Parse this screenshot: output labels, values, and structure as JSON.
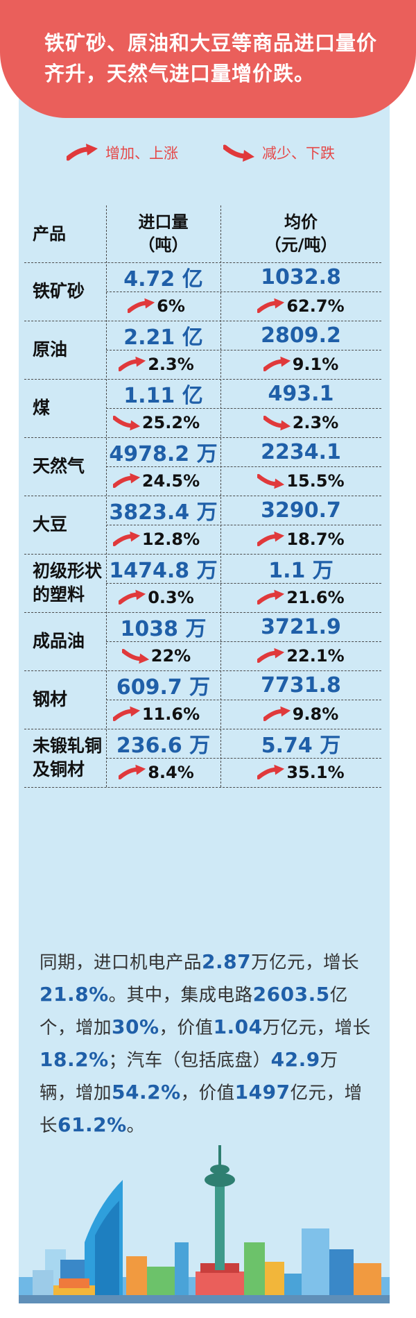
{
  "banner": {
    "title": "铁矿砂、原油和大豆等商品进口量价齐升，天然气进口量增价跌。"
  },
  "legend": {
    "up_label": "增加、上涨",
    "down_label": "减少、下跌"
  },
  "table": {
    "headers": {
      "product": "产品",
      "volume_line1": "进口量",
      "volume_line2": "（吨）",
      "price_line1": "均价",
      "price_line2": "（元/吨）"
    },
    "rows": [
      {
        "name": "铁矿砂",
        "volume": "4.72 亿",
        "volume_change": "6%",
        "volume_dir": "up",
        "price": "1032.8",
        "price_change": "62.7%",
        "price_dir": "up"
      },
      {
        "name": "原油",
        "volume": "2.21 亿",
        "volume_change": "2.3%",
        "volume_dir": "up",
        "price": "2809.2",
        "price_change": "9.1%",
        "price_dir": "up"
      },
      {
        "name": "煤",
        "volume": "1.11 亿",
        "volume_change": "25.2%",
        "volume_dir": "down",
        "price": "493.1",
        "price_change": "2.3%",
        "price_dir": "down"
      },
      {
        "name": "天然气",
        "volume": "4978.2 万",
        "volume_change": "24.5%",
        "volume_dir": "up",
        "price": "2234.1",
        "price_change": "15.5%",
        "price_dir": "down"
      },
      {
        "name": "大豆",
        "volume": "3823.4 万",
        "volume_change": "12.8%",
        "volume_dir": "up",
        "price": "3290.7",
        "price_change": "18.7%",
        "price_dir": "up"
      },
      {
        "name": "初级形状的塑料",
        "name_line1": "初级形状",
        "name_line2": "的塑料",
        "volume": "1474.8 万",
        "volume_change": "0.3%",
        "volume_dir": "up",
        "price": "1.1 万",
        "price_change": "21.6%",
        "price_dir": "up"
      },
      {
        "name": "成品油",
        "volume": "1038 万",
        "volume_change": "22%",
        "volume_dir": "down",
        "price": "3721.9",
        "price_change": "22.1%",
        "price_dir": "up"
      },
      {
        "name": "钢材",
        "volume": "609.7 万",
        "volume_change": "11.6%",
        "volume_dir": "up",
        "price": "7731.8",
        "price_change": "9.8%",
        "price_dir": "up"
      },
      {
        "name": "未锻轧铜及铜材",
        "name_line1": "未锻轧铜",
        "name_line2": "及铜材",
        "volume": "236.6 万",
        "volume_change": "8.4%",
        "volume_dir": "up",
        "price": "5.74 万",
        "price_change": "35.1%",
        "price_dir": "up"
      }
    ]
  },
  "summary": {
    "segments": [
      {
        "text": "同期，进口机电产品",
        "bold": false
      },
      {
        "text": "2.87",
        "bold": true
      },
      {
        "text": "万亿元，增长",
        "bold": false
      },
      {
        "text": "21.8%",
        "bold": true
      },
      {
        "text": "。其中，集成电路",
        "bold": false
      },
      {
        "text": "2603.5",
        "bold": true
      },
      {
        "text": "亿个，增加",
        "bold": false
      },
      {
        "text": "30%",
        "bold": true
      },
      {
        "text": "，价值",
        "bold": false
      },
      {
        "text": "1.04",
        "bold": true
      },
      {
        "text": "万亿元，增长",
        "bold": false
      },
      {
        "text": "18.2%",
        "bold": true
      },
      {
        "text": "；汽车（包括底盘）",
        "bold": false
      },
      {
        "text": "42.9",
        "bold": true
      },
      {
        "text": "万辆，增加",
        "bold": false
      },
      {
        "text": "54.2%",
        "bold": true
      },
      {
        "text": "，价值",
        "bold": false
      },
      {
        "text": "1497",
        "bold": true
      },
      {
        "text": "亿元，增长",
        "bold": false
      },
      {
        "text": "61.2%",
        "bold": true
      },
      {
        "text": "。",
        "bold": false
      }
    ]
  },
  "colors": {
    "banner": "#ea5f5b",
    "panel": "#cfe9f6",
    "accent_blue": "#1f5fa8",
    "arrow_red": "#e0393b"
  },
  "icons": {
    "up": "trend-up-arrow-icon",
    "down": "trend-down-arrow-icon"
  }
}
